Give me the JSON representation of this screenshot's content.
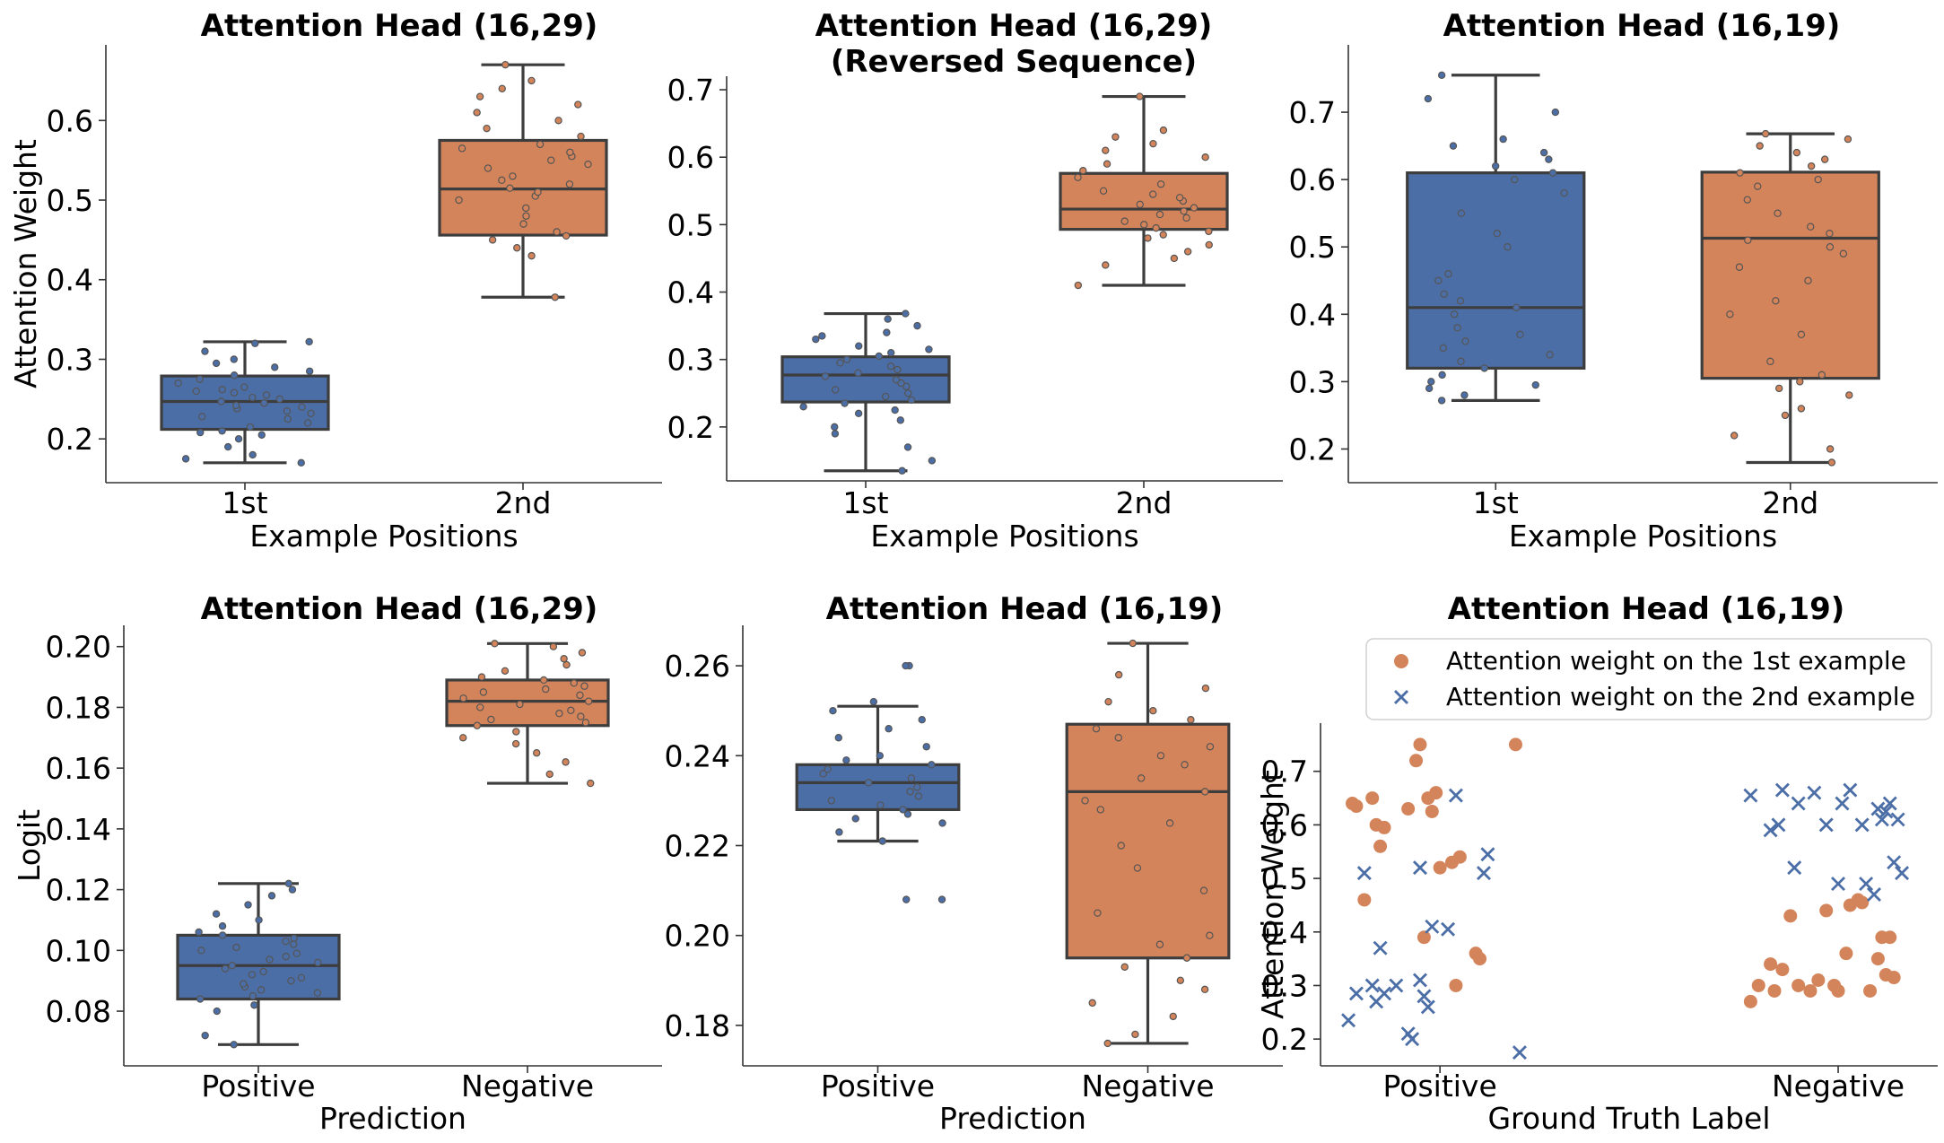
{
  "colors": {
    "blue": "#4c6ea7",
    "orange": "#d4845a",
    "edge": "#3d3d3d"
  },
  "chart_data": [
    {
      "type": "box",
      "title": "Attention Head (16,29)",
      "xlabel": "Example Positions",
      "ylabel": "Attention Weight",
      "categories": [
        "1st",
        "2nd"
      ],
      "ylim": [
        0.145,
        0.695
      ],
      "yticks": [
        0.2,
        0.3,
        0.4,
        0.5,
        0.6
      ],
      "ytick_labels": [
        "0.2",
        "0.3",
        "0.4",
        "0.5",
        "0.6"
      ],
      "boxes": [
        {
          "whislo": 0.17,
          "q1": 0.212,
          "med": 0.247,
          "q3": 0.279,
          "whishi": 0.322
        },
        {
          "whislo": 0.378,
          "q1": 0.456,
          "med": 0.514,
          "q3": 0.575,
          "whishi": 0.67
        }
      ],
      "points": [
        [
          0.17,
          0.175,
          0.18,
          0.19,
          0.2,
          0.205,
          0.208,
          0.21,
          0.215,
          0.22,
          0.225,
          0.228,
          0.232,
          0.235,
          0.238,
          0.24,
          0.242,
          0.245,
          0.247,
          0.25,
          0.252,
          0.255,
          0.258,
          0.26,
          0.262,
          0.265,
          0.27,
          0.275,
          0.28,
          0.285,
          0.29,
          0.295,
          0.3,
          0.31,
          0.32,
          0.322
        ],
        [
          0.378,
          0.43,
          0.44,
          0.45,
          0.455,
          0.46,
          0.47,
          0.48,
          0.49,
          0.5,
          0.505,
          0.51,
          0.515,
          0.52,
          0.525,
          0.53,
          0.54,
          0.545,
          0.55,
          0.555,
          0.56,
          0.565,
          0.57,
          0.58,
          0.59,
          0.6,
          0.61,
          0.62,
          0.63,
          0.64,
          0.65,
          0.67
        ]
      ]
    },
    {
      "type": "box",
      "title": "Attention Head (16,29)\n(Reversed Sequence)",
      "xlabel": "Example Positions",
      "ylabel": "",
      "categories": [
        "1st",
        "2nd"
      ],
      "ylim": [
        0.12,
        0.72
      ],
      "yticks": [
        0.2,
        0.3,
        0.4,
        0.5,
        0.6,
        0.7
      ],
      "ytick_labels": [
        "0.2",
        "0.3",
        "0.4",
        "0.5",
        "0.6",
        "0.7"
      ],
      "boxes": [
        {
          "whislo": 0.135,
          "q1": 0.237,
          "med": 0.277,
          "q3": 0.304,
          "whishi": 0.368
        },
        {
          "whislo": 0.41,
          "q1": 0.493,
          "med": 0.523,
          "q3": 0.576,
          "whishi": 0.69
        }
      ],
      "points": [
        [
          0.135,
          0.15,
          0.17,
          0.19,
          0.2,
          0.21,
          0.22,
          0.225,
          0.23,
          0.235,
          0.24,
          0.245,
          0.25,
          0.255,
          0.26,
          0.265,
          0.27,
          0.275,
          0.28,
          0.285,
          0.29,
          0.295,
          0.3,
          0.305,
          0.31,
          0.315,
          0.32,
          0.33,
          0.335,
          0.34,
          0.35,
          0.36,
          0.368
        ],
        [
          0.41,
          0.44,
          0.45,
          0.46,
          0.47,
          0.48,
          0.485,
          0.49,
          0.495,
          0.5,
          0.505,
          0.51,
          0.515,
          0.52,
          0.525,
          0.53,
          0.535,
          0.54,
          0.545,
          0.55,
          0.56,
          0.57,
          0.58,
          0.59,
          0.6,
          0.61,
          0.62,
          0.63,
          0.64,
          0.69
        ]
      ]
    },
    {
      "type": "box",
      "title": "Attention Head (16,19)",
      "xlabel": "Example Positions",
      "ylabel": "",
      "categories": [
        "1st",
        "2nd"
      ],
      "ylim": [
        0.15,
        0.8
      ],
      "yticks": [
        0.2,
        0.3,
        0.4,
        0.5,
        0.6,
        0.7
      ],
      "ytick_labels": [
        "0.2",
        "0.3",
        "0.4",
        "0.5",
        "0.6",
        "0.7"
      ],
      "boxes": [
        {
          "whislo": 0.272,
          "q1": 0.32,
          "med": 0.41,
          "q3": 0.61,
          "whishi": 0.755
        },
        {
          "whislo": 0.18,
          "q1": 0.305,
          "med": 0.513,
          "q3": 0.611,
          "whishi": 0.668
        }
      ],
      "points": [
        [
          0.272,
          0.28,
          0.29,
          0.295,
          0.3,
          0.31,
          0.32,
          0.33,
          0.34,
          0.35,
          0.36,
          0.37,
          0.38,
          0.4,
          0.41,
          0.42,
          0.43,
          0.45,
          0.46,
          0.5,
          0.52,
          0.55,
          0.58,
          0.6,
          0.61,
          0.62,
          0.63,
          0.64,
          0.65,
          0.66,
          0.7,
          0.72,
          0.755
        ],
        [
          0.18,
          0.2,
          0.22,
          0.25,
          0.26,
          0.28,
          0.29,
          0.3,
          0.31,
          0.33,
          0.37,
          0.4,
          0.42,
          0.45,
          0.47,
          0.49,
          0.5,
          0.51,
          0.52,
          0.53,
          0.55,
          0.57,
          0.59,
          0.6,
          0.61,
          0.62,
          0.63,
          0.64,
          0.65,
          0.66,
          0.668
        ]
      ]
    },
    {
      "type": "box",
      "title": "Attention Head (16,29)",
      "xlabel": "Prediction",
      "ylabel": "Logit",
      "categories": [
        "Positive",
        "Negative"
      ],
      "ylim": [
        0.062,
        0.207
      ],
      "yticks": [
        0.08,
        0.1,
        0.12,
        0.14,
        0.16,
        0.18,
        0.2
      ],
      "ytick_labels": [
        "0.08",
        "0.10",
        "0.12",
        "0.14",
        "0.16",
        "0.18",
        "0.20"
      ],
      "boxes": [
        {
          "whislo": 0.069,
          "q1": 0.084,
          "med": 0.095,
          "q3": 0.105,
          "whishi": 0.122
        },
        {
          "whislo": 0.155,
          "q1": 0.174,
          "med": 0.182,
          "q3": 0.189,
          "whishi": 0.201
        }
      ],
      "points": [
        [
          0.069,
          0.072,
          0.08,
          0.082,
          0.084,
          0.085,
          0.086,
          0.087,
          0.088,
          0.089,
          0.09,
          0.091,
          0.092,
          0.093,
          0.094,
          0.095,
          0.096,
          0.097,
          0.098,
          0.099,
          0.1,
          0.101,
          0.102,
          0.103,
          0.104,
          0.105,
          0.106,
          0.108,
          0.11,
          0.112,
          0.115,
          0.118,
          0.12,
          0.122
        ],
        [
          0.155,
          0.158,
          0.162,
          0.165,
          0.168,
          0.17,
          0.172,
          0.174,
          0.175,
          0.176,
          0.177,
          0.178,
          0.179,
          0.18,
          0.181,
          0.182,
          0.183,
          0.184,
          0.185,
          0.186,
          0.187,
          0.188,
          0.189,
          0.19,
          0.192,
          0.194,
          0.196,
          0.198,
          0.2,
          0.201
        ]
      ]
    },
    {
      "type": "box",
      "title": "Attention Head (16,19)",
      "xlabel": "Prediction",
      "ylabel": "",
      "categories": [
        "Positive",
        "Negative"
      ],
      "ylim": [
        0.171,
        0.269
      ],
      "yticks": [
        0.18,
        0.2,
        0.22,
        0.24,
        0.26
      ],
      "ytick_labels": [
        "0.18",
        "0.20",
        "0.22",
        "0.24",
        "0.26"
      ],
      "boxes": [
        {
          "whislo": 0.221,
          "q1": 0.228,
          "med": 0.234,
          "q3": 0.238,
          "whishi": 0.251
        },
        {
          "whislo": 0.176,
          "q1": 0.195,
          "med": 0.232,
          "q3": 0.247,
          "whishi": 0.265
        }
      ],
      "points": [
        [
          0.208,
          0.208,
          0.221,
          0.223,
          0.225,
          0.226,
          0.227,
          0.228,
          0.229,
          0.23,
          0.231,
          0.232,
          0.233,
          0.234,
          0.235,
          0.236,
          0.237,
          0.238,
          0.239,
          0.24,
          0.242,
          0.244,
          0.246,
          0.248,
          0.25,
          0.252,
          0.26,
          0.26
        ],
        [
          0.176,
          0.178,
          0.182,
          0.185,
          0.188,
          0.19,
          0.193,
          0.195,
          0.198,
          0.2,
          0.205,
          0.21,
          0.215,
          0.22,
          0.225,
          0.228,
          0.23,
          0.232,
          0.235,
          0.238,
          0.24,
          0.242,
          0.244,
          0.246,
          0.248,
          0.25,
          0.252,
          0.255,
          0.258,
          0.265
        ]
      ]
    },
    {
      "type": "scatter",
      "title": "Attention Head (16,19)",
      "xlabel": "Ground Truth Label",
      "ylabel": "Attention Weight",
      "categories": [
        "Positive",
        "Negative"
      ],
      "ylim": [
        0.15,
        0.79
      ],
      "yticks": [
        0.2,
        0.3,
        0.4,
        0.5,
        0.6,
        0.7
      ],
      "ytick_labels": [
        "0.2",
        "0.3",
        "0.4",
        "0.5",
        "0.6",
        "0.7"
      ],
      "legend_position": "top",
      "series": [
        {
          "name": "Attention weight on the 1st example",
          "marker": "circle",
          "points": [
            [
              -0.22,
              0.64
            ],
            [
              -0.21,
              0.635
            ],
            [
              -0.19,
              0.46
            ],
            [
              -0.17,
              0.65
            ],
            [
              -0.16,
              0.6
            ],
            [
              -0.15,
              0.56
            ],
            [
              -0.14,
              0.595
            ],
            [
              -0.08,
              0.63
            ],
            [
              -0.06,
              0.72
            ],
            [
              -0.05,
              0.75
            ],
            [
              -0.04,
              0.39
            ],
            [
              -0.03,
              0.65
            ],
            [
              -0.02,
              0.625
            ],
            [
              -0.01,
              0.66
            ],
            [
              0.0,
              0.52
            ],
            [
              0.03,
              0.53
            ],
            [
              0.04,
              0.3
            ],
            [
              0.09,
              0.36
            ],
            [
              0.1,
              0.35
            ],
            [
              0.19,
              0.75
            ],
            [
              0.05,
              0.54
            ],
            [
              0.78,
              0.27
            ],
            [
              0.8,
              0.3
            ],
            [
              0.83,
              0.34
            ],
            [
              0.84,
              0.29
            ],
            [
              0.86,
              0.33
            ],
            [
              0.88,
              0.43
            ],
            [
              0.9,
              0.3
            ],
            [
              0.93,
              0.29
            ],
            [
              0.95,
              0.31
            ],
            [
              0.97,
              0.44
            ],
            [
              0.99,
              0.3
            ],
            [
              1.0,
              0.29
            ],
            [
              1.02,
              0.36
            ],
            [
              1.03,
              0.45
            ],
            [
              1.05,
              0.46
            ],
            [
              1.06,
              0.455
            ],
            [
              1.08,
              0.29
            ],
            [
              1.1,
              0.35
            ],
            [
              1.11,
              0.39
            ],
            [
              1.12,
              0.32
            ],
            [
              1.13,
              0.39
            ],
            [
              1.14,
              0.315
            ]
          ]
        },
        {
          "name": "Attention weight on the 2nd example",
          "marker": "x",
          "points": [
            [
              -0.23,
              0.235
            ],
            [
              -0.21,
              0.285
            ],
            [
              -0.19,
              0.51
            ],
            [
              -0.17,
              0.3
            ],
            [
              -0.16,
              0.27
            ],
            [
              -0.15,
              0.37
            ],
            [
              -0.14,
              0.285
            ],
            [
              -0.11,
              0.3
            ],
            [
              -0.08,
              0.21
            ],
            [
              -0.07,
              0.2
            ],
            [
              -0.05,
              0.31
            ],
            [
              -0.05,
              0.52
            ],
            [
              -0.04,
              0.28
            ],
            [
              -0.03,
              0.26
            ],
            [
              -0.02,
              0.41
            ],
            [
              0.02,
              0.405
            ],
            [
              0.04,
              0.655
            ],
            [
              0.11,
              0.51
            ],
            [
              0.12,
              0.545
            ],
            [
              0.2,
              0.175
            ],
            [
              0.78,
              0.655
            ],
            [
              0.83,
              0.59
            ],
            [
              0.85,
              0.6
            ],
            [
              0.86,
              0.665
            ],
            [
              0.89,
              0.52
            ],
            [
              0.9,
              0.64
            ],
            [
              0.94,
              0.66
            ],
            [
              0.97,
              0.6
            ],
            [
              1.0,
              0.49
            ],
            [
              1.01,
              0.64
            ],
            [
              1.03,
              0.665
            ],
            [
              1.06,
              0.6
            ],
            [
              1.07,
              0.49
            ],
            [
              1.09,
              0.47
            ],
            [
              1.1,
              0.63
            ],
            [
              1.11,
              0.61
            ],
            [
              1.12,
              0.625
            ],
            [
              1.13,
              0.64
            ],
            [
              1.14,
              0.53
            ],
            [
              1.15,
              0.61
            ],
            [
              1.16,
              0.51
            ]
          ]
        }
      ]
    }
  ]
}
